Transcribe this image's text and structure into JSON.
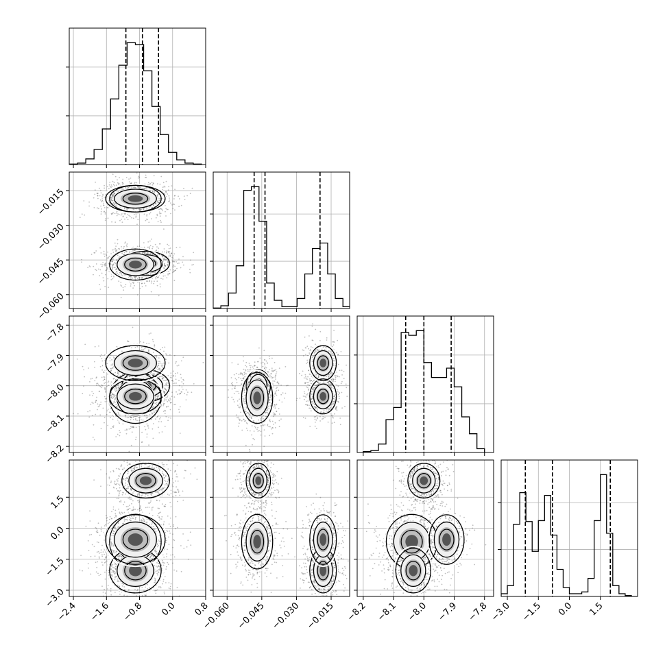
{
  "chart_data": {
    "type": "corner",
    "parameters": 4,
    "axes": [
      {
        "index": 0,
        "range": [
          -2.5,
          0.8
        ],
        "ticks": [
          "−2.4",
          "−1.6",
          "−0.8",
          "0.0",
          "0.8"
        ],
        "tick_values": [
          -2.4,
          -1.6,
          -0.8,
          0.0,
          0.8
        ]
      },
      {
        "index": 1,
        "range": [
          -0.066,
          -0.007
        ],
        "ticks": [
          "−0.060",
          "−0.045",
          "−0.030",
          "−0.015"
        ],
        "tick_values": [
          -0.06,
          -0.045,
          -0.03,
          -0.015
        ]
      },
      {
        "index": 2,
        "range": [
          -8.22,
          -7.77
        ],
        "ticks": [
          "−8.2",
          "−8.1",
          "−8.0",
          "−7.9",
          "−7.8"
        ],
        "tick_values": [
          -8.2,
          -8.1,
          -8.0,
          -7.9,
          -7.8
        ]
      },
      {
        "index": 3,
        "range": [
          -3.3,
          3.3
        ],
        "ticks": [
          "−3.0",
          "−1.5",
          "0.0",
          "1.5"
        ],
        "tick_values": [
          -3.0,
          -1.5,
          0.0,
          1.5
        ]
      }
    ],
    "marginals": [
      {
        "param": 0,
        "bin_edges": [
          -2.5,
          -2.3,
          -2.1,
          -1.9,
          -1.7,
          -1.5,
          -1.3,
          -1.1,
          -0.9,
          -0.7,
          -0.5,
          -0.3,
          -0.1,
          0.1,
          0.3,
          0.5,
          0.7
        ],
        "counts": [
          0.5,
          1.5,
          6,
          16,
          38,
          70,
          106,
          130,
          128,
          100,
          62,
          32,
          13,
          5,
          1.5,
          0.5
        ],
        "quantiles": [
          -1.13,
          -0.73,
          -0.34
        ]
      },
      {
        "param": 1,
        "bin_edges": [
          -0.066,
          -0.0627,
          -0.0594,
          -0.0561,
          -0.0528,
          -0.0495,
          -0.0462,
          -0.0429,
          -0.0396,
          -0.0363,
          -0.033,
          -0.0297,
          -0.0264,
          -0.0231,
          -0.0198,
          -0.0165,
          -0.0132,
          -0.0099,
          -0.0066
        ],
        "counts": [
          0.5,
          3,
          17,
          47,
          130,
          134,
          96,
          28,
          9,
          2,
          2,
          11,
          38,
          66,
          72,
          38,
          11,
          2
        ],
        "quantiles": [
          -0.0483,
          -0.0436,
          -0.0198
        ]
      },
      {
        "param": 2,
        "bin_edges": [
          -8.2,
          -8.175,
          -8.15,
          -8.125,
          -8.1,
          -8.075,
          -8.05,
          -8.025,
          -8.0,
          -7.975,
          -7.95,
          -7.925,
          -7.9,
          -7.875,
          -7.85,
          -7.825,
          -7.8
        ],
        "counts": [
          1,
          2,
          9,
          35,
          48,
          128,
          125,
          130,
          96,
          80,
          80,
          90,
          70,
          38,
          20,
          4
        ],
        "quantiles": [
          -8.06,
          -8.0,
          -7.91
        ]
      },
      {
        "param": 3,
        "bin_edges": [
          -3.3,
          -3.0,
          -2.7,
          -2.4,
          -2.1,
          -1.8,
          -1.5,
          -1.2,
          -0.9,
          -0.6,
          -0.3,
          0.0,
          0.3,
          0.6,
          0.9,
          1.2,
          1.5,
          1.8,
          2.1,
          2.4,
          2.7,
          3.0,
          3.3
        ],
        "counts": [
          3,
          12,
          80,
          115,
          83,
          50,
          84,
          112,
          68,
          30,
          10,
          3,
          3,
          5,
          20,
          84,
          135,
          70,
          12,
          3,
          1,
          0
        ],
        "quantiles": [
          -2.13,
          -0.82,
          1.98
        ]
      }
    ],
    "modes": [
      {
        "p0": -0.65,
        "p1": -0.0465,
        "p2": -8.0,
        "p3": 2.3,
        "s0": 0.24,
        "s1": 0.0022,
        "s2": 0.022,
        "s3": 0.35,
        "weight": 0.3
      },
      {
        "p0": -0.9,
        "p1": -0.047,
        "p2": -8.04,
        "p3": -0.65,
        "s0": 0.26,
        "s1": 0.0028,
        "s2": 0.035,
        "s3": 0.55,
        "weight": 0.27
      },
      {
        "p0": -0.9,
        "p1": -0.0185,
        "p2": -8.035,
        "p3": -2.05,
        "s0": 0.26,
        "s1": 0.0024,
        "s2": 0.024,
        "s3": 0.45,
        "weight": 0.28
      },
      {
        "p0": -0.9,
        "p1": -0.0185,
        "p2": -7.925,
        "p3": -0.55,
        "s0": 0.3,
        "s1": 0.0024,
        "s2": 0.024,
        "s3": 0.5,
        "weight": 0.15
      }
    ],
    "contour_levels": 3,
    "grid": true,
    "colors": {
      "contour": "#000000",
      "points": "#444444",
      "quantile": "#000000",
      "grid": "#b0b0b0"
    }
  }
}
